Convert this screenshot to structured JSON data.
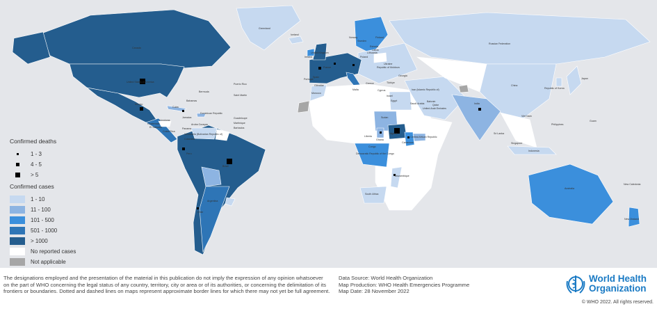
{
  "colors": {
    "ocean": "#e4e6ea",
    "cases_1_10": "#c6d9f0",
    "cases_11_100": "#8db4e2",
    "cases_101_500": "#3b8fdc",
    "cases_501_1000": "#2e75b6",
    "cases_over_1000": "#245d8e",
    "no_reported_cases": "#ffffff",
    "not_applicable": "#a6a6a6",
    "death_marker": "#000000"
  },
  "legend": {
    "deaths_title": "Confirmed deaths",
    "deaths": [
      {
        "label": "1 - 3"
      },
      {
        "label": "4 - 5"
      },
      {
        "label": "> 5"
      }
    ],
    "cases_title": "Confirmed cases",
    "cases": [
      {
        "label": "1 - 10",
        "color": "#c6d9f0"
      },
      {
        "label": "11 - 100",
        "color": "#8db4e2"
      },
      {
        "label": "101 - 500",
        "color": "#3b8fdc"
      },
      {
        "label": "501 - 1000",
        "color": "#2e75b6"
      },
      {
        "label": "> 1000",
        "color": "#245d8e"
      },
      {
        "label": "No reported cases",
        "color": "#ffffff"
      },
      {
        "label": "Not applicable",
        "color": "#a6a6a6"
      }
    ]
  },
  "labels": {
    "greenland": "Greenland",
    "iceland": "Iceland",
    "russia": "Russian Federation",
    "canada": "Canada",
    "usa": "United States of America",
    "mexico": "Mexico",
    "bermuda": "Bermuda",
    "bahamas": "Bahamas",
    "cuba": "Cuba",
    "puerto_rico": "Puerto Rico",
    "saint_martin": "Saint Martin",
    "dominican": "Dominican Republic",
    "guadeloupe": "Guadeloupe",
    "martinique": "Martinique",
    "barbados": "Barbados",
    "jamaica": "Jamaica",
    "honduras": "Honduras",
    "guatemala": "Guatemala",
    "el_salvador": "El Salvador",
    "costa_rica": "Costa Rica",
    "panama": "Panama",
    "aruba_curacao": "Aruba Curaçao",
    "venezuela": "Venezuela (Bolivarian Republic of)",
    "colombia": "Colombia",
    "brazil": "Brazil",
    "peru": "Peru",
    "chile": "Chile",
    "argentina": "Argentina",
    "china": "China",
    "korea": "Republic of Korea",
    "japan": "Japan",
    "india": "India",
    "sri_lanka": "Sri Lanka",
    "philippines": "Philippines",
    "viet_nam": "Viet Nam",
    "singapore": "Singapore",
    "indonesia": "Indonesia",
    "guam": "Guam",
    "australia": "Australia",
    "new_caledonia": "New Caledonia",
    "new_zealand": "New Zealand",
    "sudan": "Sudan",
    "nigeria": "Nigeria",
    "liberia": "Liberia",
    "ghana": "Ghana",
    "cameroon": "Cameroon",
    "car": "Central African Republic",
    "congo": "Congo",
    "drc": "Democratic Republic of the Congo",
    "mozambique": "Mozambique",
    "south_africa": "South Africa",
    "morocco": "Morocco",
    "egypt": "Egypt",
    "israel": "Israel",
    "saudi": "Saudi Arabia",
    "qatar": "Qatar",
    "bahrain": "Bahrain",
    "uae": "United Arab Emirates",
    "iran": "Iran (Islamic Republic of)",
    "turkiye": "Türkiye",
    "georgia": "Georgia",
    "cyprus": "Cyprus",
    "uk": "United Kingdom",
    "ireland": "Ireland",
    "norway": "Norway",
    "sweden": "Sweden",
    "finland": "Finland",
    "estonia": "Estonia",
    "latvia": "Latvia",
    "lithuania": "Lithuania",
    "poland": "Poland",
    "ukraine": "Ukraine",
    "moldova": "Republic of Moldova",
    "france": "France",
    "spain": "Spain",
    "portugal": "Portugal",
    "gibraltar": "Gibraltar",
    "malta": "Malta",
    "greece": "Greece"
  },
  "footer": {
    "disclaimer": "The designations employed and the presentation of the material in this publication do not imply the expression of any opinion whatsoever on the part of WHO concerning the legal status of any country, territory, city or area or of its authorities, or concerning the delimitation of its frontiers or boundaries. Dotted and dashed lines on maps represent approximate border lines for which there may not yet be full agreement.",
    "data_source": "Data Source: World Health Organization",
    "map_production": "Map Production: WHO Health Emergencies Programme",
    "map_date": "Map Date: 28 November 2022",
    "logo_line1": "World Health",
    "logo_line2": "Organization",
    "copyright": "© WHO 2022. All rights reserved."
  }
}
